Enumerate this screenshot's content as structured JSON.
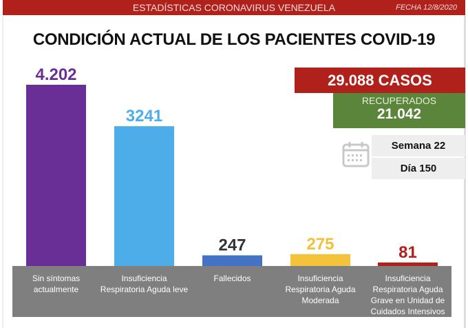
{
  "header": {
    "title": "ESTADÍSTICAS CORONAVIRUS VENEZUELA",
    "date": "FECHA 12/8/2020"
  },
  "summary": {
    "casos": "29.088 CASOS",
    "recuperados_label": "RECUPERADOS",
    "recuperados_value": "21.042",
    "semana": "Semana 22",
    "dia": "Día 150"
  },
  "chart_data": {
    "type": "bar",
    "title": "CONDICIÓN ACTUAL DE LOS PACIENTES COVID-19",
    "categories": [
      "Sin síntomas actualmente",
      "Insuficiencia Respiratoria Aguda leve",
      "Fallecidos",
      "Insuficiencia Respiratoria Aguda Moderada",
      "Insuficiencia Respiratoria Aguda Grave en Unidad de Cuidados Intensivos"
    ],
    "values": [
      4202,
      3241,
      247,
      275,
      81
    ],
    "value_labels": [
      "4.202",
      "3241",
      "247",
      "275",
      "81"
    ],
    "colors": [
      "#6a2f96",
      "#4dade8",
      "#4472c4",
      "#f4c23b",
      "#b0211b"
    ],
    "label_colors": [
      "#6a2f96",
      "#4dade8",
      "#333333",
      "#f2c037",
      "#b0211b"
    ],
    "xlabel": "",
    "ylabel": "",
    "ylim": [
      0,
      4202
    ],
    "grid": false,
    "legend": "none"
  }
}
